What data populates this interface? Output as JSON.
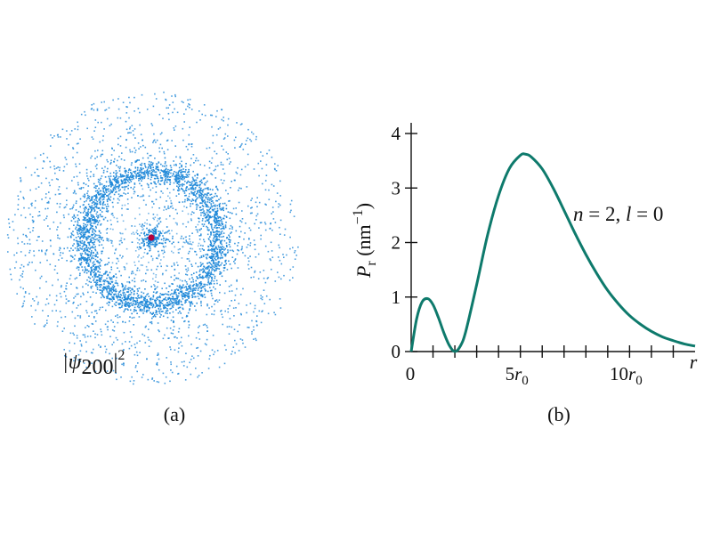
{
  "panel_a": {
    "caption": "(a)",
    "label_main": "|ψ",
    "label_sub": "200",
    "label_close": "|",
    "label_sup": "2",
    "colors": {
      "dots": "#1f88d8",
      "nucleus": "#b3003b"
    }
  },
  "panel_b": {
    "caption": "(b)",
    "annotation": {
      "n": "n",
      "eq1": " = 2, ",
      "l": "l",
      "eq2": " = 0"
    },
    "ylabel": {
      "P": "P",
      "sub": "r",
      "unit": " (nm",
      "exp": "−1",
      "close": ")"
    },
    "xtick_labels": [
      {
        "value": 0,
        "text": "0"
      },
      {
        "value": 5,
        "num": "5",
        "var": "r",
        "sub": "0"
      },
      {
        "value": 10,
        "num": "10",
        "var": "r",
        "sub": "0"
      }
    ],
    "x_axis_label": "r"
  },
  "chart_data": {
    "type": "line",
    "title": "",
    "xlabel": "r",
    "ylabel": "Pr (nm−1)",
    "xlim": [
      0,
      13
    ],
    "ylim": [
      0,
      4
    ],
    "x_minor_ticks": [
      1,
      2,
      3,
      4,
      5,
      6,
      7,
      8,
      9,
      10,
      11,
      12
    ],
    "y_ticks": [
      0,
      1,
      2,
      3,
      4
    ],
    "x": [
      0,
      0.25,
      0.5,
      0.76,
      1.0,
      1.25,
      1.5,
      1.75,
      2.0,
      2.25,
      2.5,
      3.0,
      3.5,
      4.0,
      4.5,
      5.0,
      5.24,
      5.5,
      6.0,
      6.5,
      7.0,
      7.5,
      8.0,
      8.5,
      9.0,
      9.5,
      10.0,
      10.5,
      11.0,
      11.5,
      12.0,
      12.5,
      13.0
    ],
    "series": [
      {
        "values": [
          0,
          0.6,
          0.91,
          0.97,
          0.86,
          0.62,
          0.34,
          0.11,
          0.0,
          0.1,
          0.37,
          1.23,
          2.14,
          2.86,
          3.36,
          3.6,
          3.62,
          3.57,
          3.35,
          3.0,
          2.59,
          2.17,
          1.78,
          1.43,
          1.12,
          0.87,
          0.66,
          0.5,
          0.37,
          0.27,
          0.2,
          0.14,
          0.1
        ],
        "color": "#0e7a6c"
      }
    ],
    "grid": false,
    "legend": "none"
  }
}
